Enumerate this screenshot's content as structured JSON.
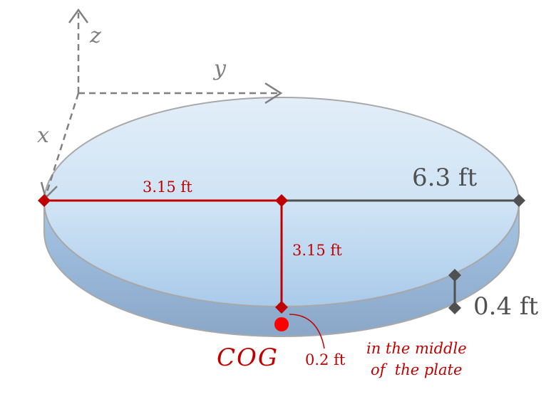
{
  "axes": {
    "x_label": "x",
    "y_label": "y",
    "z_label": "z"
  },
  "dimensions": {
    "radius_horizontal": "3.15 ft",
    "radius_vertical": "3.15 ft",
    "diameter": "6.3 ft",
    "thickness": "0.4 ft",
    "cog_offset": "0.2 ft"
  },
  "cog": {
    "label": "COG",
    "note_line1": "in the middle",
    "note_line2": "of  the plate"
  },
  "colors": {
    "red": "#c00000",
    "dark_gray": "#505050",
    "axis_gray": "#808080",
    "cog_dot": "#ff0000"
  }
}
